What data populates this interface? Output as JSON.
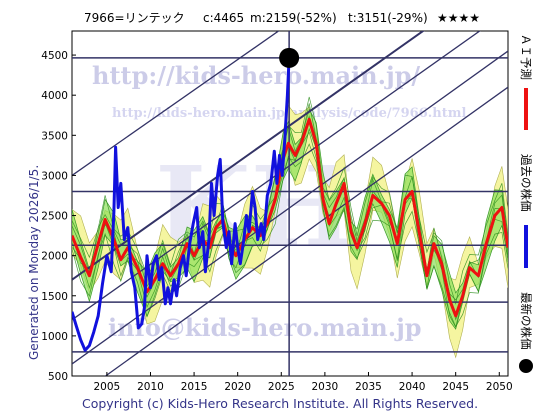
{
  "header": {
    "code_name": "7966=リンテック",
    "current": "c:4465",
    "mid_target": "m:2159(-52%)",
    "target": "t:3151(-29%)",
    "stars": "★★★★"
  },
  "generated_label": "Generated on Monday 2026/1/5.",
  "copyright": "Copyright (c) Kids-Hero Research Institute. All Rights Reserved.",
  "watermarks": {
    "top": "http://kids-hero.main.jp/",
    "mid": "http://kids-hero.main.jp/analysis/code/7966.html",
    "big": "KH",
    "bottom": "info@kids-hero.main.jp"
  },
  "legend": [
    {
      "label": "ＡＩ予測",
      "color": "#ee1111"
    },
    {
      "label": "過去の株価",
      "color": "#1111dd"
    },
    {
      "label": "最新の株価",
      "color": "#000000"
    }
  ],
  "colors": {
    "historical": "#1111dd",
    "forecast": "#ee1111",
    "band_outer": "#f5f5a0",
    "band_inner": "#8ce05a",
    "channel": "#333366",
    "hline": "#333366"
  },
  "chart_data": {
    "type": "line",
    "x_range": [
      2001,
      2051
    ],
    "y_range": [
      500,
      4800
    ],
    "x_ticks": [
      2005,
      2010,
      2015,
      2020,
      2025,
      2030,
      2035,
      2040,
      2045,
      2050
    ],
    "y_ticks": [
      500,
      1000,
      1500,
      2000,
      2500,
      3000,
      3500,
      4000,
      4500
    ],
    "horizontal_levels": [
      4465,
      2800,
      2130,
      1420,
      800
    ],
    "latest": {
      "year": 2025.9,
      "value": 4465
    },
    "series": [
      {
        "name": "過去の株価",
        "points": [
          [
            2001,
            1300
          ],
          [
            2001.5,
            1120
          ],
          [
            2002,
            950
          ],
          [
            2002.5,
            820
          ],
          [
            2003,
            880
          ],
          [
            2003.5,
            1050
          ],
          [
            2004,
            1250
          ],
          [
            2004.5,
            1650
          ],
          [
            2005,
            2000
          ],
          [
            2005.5,
            1800
          ],
          [
            2005.8,
            2550
          ],
          [
            2006,
            3350
          ],
          [
            2006.3,
            2600
          ],
          [
            2006.6,
            2900
          ],
          [
            2007,
            2200
          ],
          [
            2007.4,
            2350
          ],
          [
            2007.8,
            1800
          ],
          [
            2008.2,
            1600
          ],
          [
            2008.6,
            1100
          ],
          [
            2009,
            1150
          ],
          [
            2009.3,
            1350
          ],
          [
            2009.6,
            2000
          ],
          [
            2010,
            1600
          ],
          [
            2010.3,
            1900
          ],
          [
            2010.7,
            2000
          ],
          [
            2011,
            1700
          ],
          [
            2011.3,
            1850
          ],
          [
            2011.7,
            1400
          ],
          [
            2012,
            1600
          ],
          [
            2012.3,
            1400
          ],
          [
            2012.7,
            1700
          ],
          [
            2013,
            1500
          ],
          [
            2013.4,
            1850
          ],
          [
            2013.8,
            2000
          ],
          [
            2014.1,
            1750
          ],
          [
            2014.5,
            2150
          ],
          [
            2014.9,
            2400
          ],
          [
            2015.3,
            2600
          ],
          [
            2015.6,
            2100
          ],
          [
            2016,
            2300
          ],
          [
            2016.3,
            1800
          ],
          [
            2016.7,
            2200
          ],
          [
            2017,
            2900
          ],
          [
            2017.3,
            2500
          ],
          [
            2017.7,
            3000
          ],
          [
            2018,
            3200
          ],
          [
            2018.3,
            2400
          ],
          [
            2018.7,
            2100
          ],
          [
            2019,
            2300
          ],
          [
            2019.3,
            1900
          ],
          [
            2019.7,
            2400
          ],
          [
            2020,
            2100
          ],
          [
            2020.3,
            1900
          ],
          [
            2020.7,
            2200
          ],
          [
            2021,
            2500
          ],
          [
            2021.3,
            2300
          ],
          [
            2021.7,
            2800
          ],
          [
            2022,
            2600
          ],
          [
            2022.3,
            2200
          ],
          [
            2022.7,
            2400
          ],
          [
            2023,
            2200
          ],
          [
            2023.4,
            2750
          ],
          [
            2023.8,
            2900
          ],
          [
            2024.2,
            3300
          ],
          [
            2024.5,
            2900
          ],
          [
            2024.8,
            3250
          ],
          [
            2025.1,
            3000
          ],
          [
            2025.4,
            3450
          ],
          [
            2025.7,
            4000
          ],
          [
            2025.9,
            4465
          ]
        ]
      },
      {
        "name": "ＡＩ予測",
        "points": [
          [
            2001,
            2250
          ],
          [
            2002,
            1980
          ],
          [
            2003,
            1750
          ],
          [
            2004,
            2150
          ],
          [
            2004.8,
            2450
          ],
          [
            2005.8,
            2200
          ],
          [
            2006.6,
            1950
          ],
          [
            2007.4,
            2100
          ],
          [
            2008.5,
            1850
          ],
          [
            2009.6,
            1550
          ],
          [
            2010.5,
            1700
          ],
          [
            2011.4,
            1900
          ],
          [
            2012.3,
            1750
          ],
          [
            2013.2,
            1900
          ],
          [
            2014.2,
            2150
          ],
          [
            2015,
            2000
          ],
          [
            2016,
            2200
          ],
          [
            2016.8,
            2100
          ],
          [
            2017.5,
            2350
          ],
          [
            2018.3,
            2450
          ],
          [
            2019,
            2150
          ],
          [
            2019.8,
            2000
          ],
          [
            2020.8,
            2200
          ],
          [
            2021.7,
            2350
          ],
          [
            2022.6,
            2250
          ],
          [
            2023.4,
            2400
          ],
          [
            2024.3,
            2700
          ],
          [
            2025.2,
            3200
          ],
          [
            2025.8,
            3400
          ],
          [
            2026.6,
            3250
          ],
          [
            2027.3,
            3400
          ],
          [
            2028.2,
            3700
          ],
          [
            2029,
            3400
          ],
          [
            2029.8,
            2700
          ],
          [
            2030.5,
            2400
          ],
          [
            2031.3,
            2650
          ],
          [
            2032.2,
            2900
          ],
          [
            2033,
            2300
          ],
          [
            2033.7,
            2100
          ],
          [
            2034.6,
            2400
          ],
          [
            2035.5,
            2750
          ],
          [
            2036.5,
            2650
          ],
          [
            2037.4,
            2500
          ],
          [
            2038.3,
            2150
          ],
          [
            2039.2,
            2700
          ],
          [
            2040,
            2800
          ],
          [
            2040.8,
            2300
          ],
          [
            2041.7,
            1750
          ],
          [
            2042.5,
            2150
          ],
          [
            2043.4,
            1900
          ],
          [
            2044.3,
            1450
          ],
          [
            2045,
            1250
          ],
          [
            2045.8,
            1500
          ],
          [
            2046.6,
            1850
          ],
          [
            2047.6,
            1750
          ],
          [
            2048.5,
            2150
          ],
          [
            2049.5,
            2500
          ],
          [
            2050.3,
            2600
          ],
          [
            2051,
            2100
          ]
        ]
      }
    ],
    "channel_lines": [
      {
        "x1": 2001,
        "y1": 3000,
        "x2": 2051,
        "y2": 6800
      },
      {
        "x1": 2001,
        "y1": 1700,
        "x2": 2051,
        "y2": 5550
      },
      {
        "x1": 2001,
        "y1": 1200,
        "x2": 2051,
        "y2": 5050
      },
      {
        "x1": 2001,
        "y1": 650,
        "x2": 2051,
        "y2": 4550
      },
      {
        "x1": 2001,
        "y1": 200,
        "x2": 2051,
        "y2": 4100
      }
    ]
  }
}
